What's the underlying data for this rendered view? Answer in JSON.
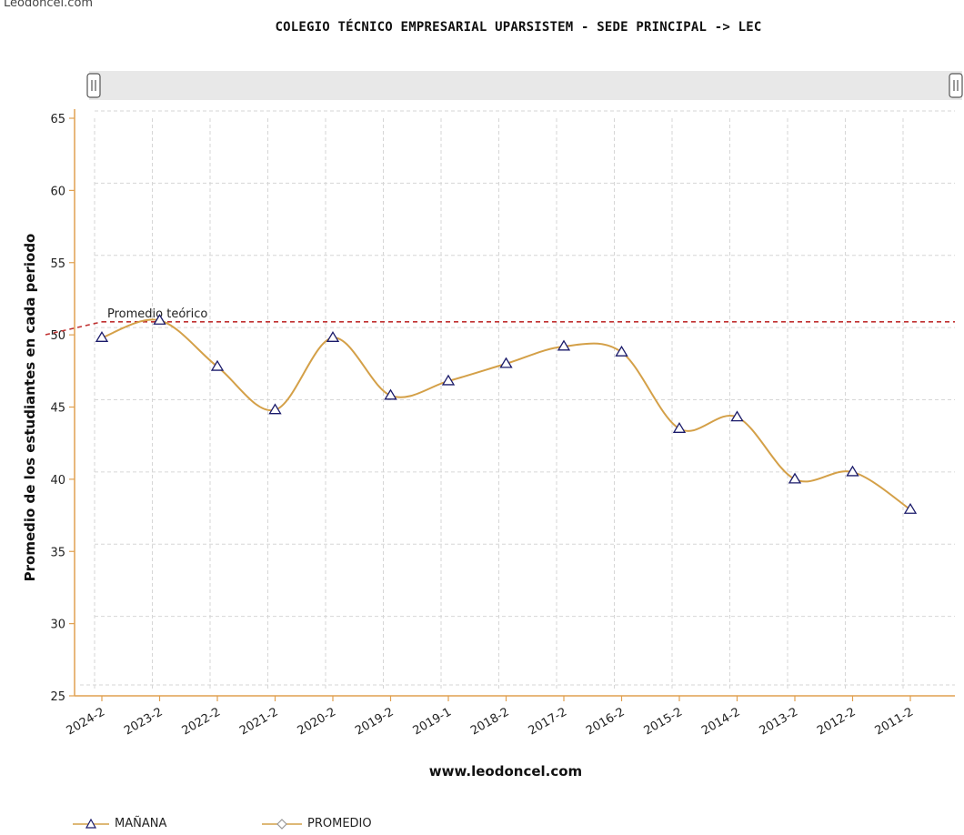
{
  "watermark": "Leodoncel.com",
  "title": "COLEGIO TÉCNICO EMPRESARIAL UPARSISTEM - SEDE PRINCIPAL -> LEC",
  "colors": {
    "line": "#d4a048",
    "axis": "#e0a050",
    "grid": "#d6d6d6",
    "reference": "#c03030",
    "marker": "#1a1a6a",
    "scrollbar": "#e8e8e8"
  },
  "chart_data": {
    "type": "line",
    "title": "COLEGIO TÉCNICO EMPRESARIAL UPARSISTEM - SEDE PRINCIPAL -> LEC",
    "xlabel": "www.leodoncel.com",
    "ylabel": "Promedio de los estudiantes en cada periodo",
    "ylim": [
      25,
      65
    ],
    "yticks": [
      25,
      30,
      35,
      40,
      45,
      50,
      55,
      60,
      65
    ],
    "grid": true,
    "categories": [
      "2024-2",
      "2023-2",
      "2022-2",
      "2021-2",
      "2020-2",
      "2019-2",
      "2019-1",
      "2018-2",
      "2017-2",
      "2016-2",
      "2015-2",
      "2014-2",
      "2013-2",
      "2012-2",
      "2011-2"
    ],
    "series": [
      {
        "name": "MAÑANA",
        "marker": "triangle",
        "values": [
          49.8,
          51.0,
          47.8,
          44.8,
          49.8,
          45.8,
          46.8,
          48.0,
          49.2,
          48.8,
          43.5,
          44.3,
          40.0,
          40.5,
          37.9
        ]
      },
      {
        "name": "PROMEDIO",
        "marker": "diamond",
        "values": [
          49.8,
          51.0,
          47.8,
          44.8,
          49.8,
          45.8,
          46.8,
          48.0,
          49.2,
          48.8,
          43.5,
          44.3,
          40.0,
          40.5,
          37.9
        ]
      }
    ],
    "reference_line": {
      "label": "Promedio teórico",
      "value": 50.9
    },
    "legend_position": "bottom-left"
  }
}
